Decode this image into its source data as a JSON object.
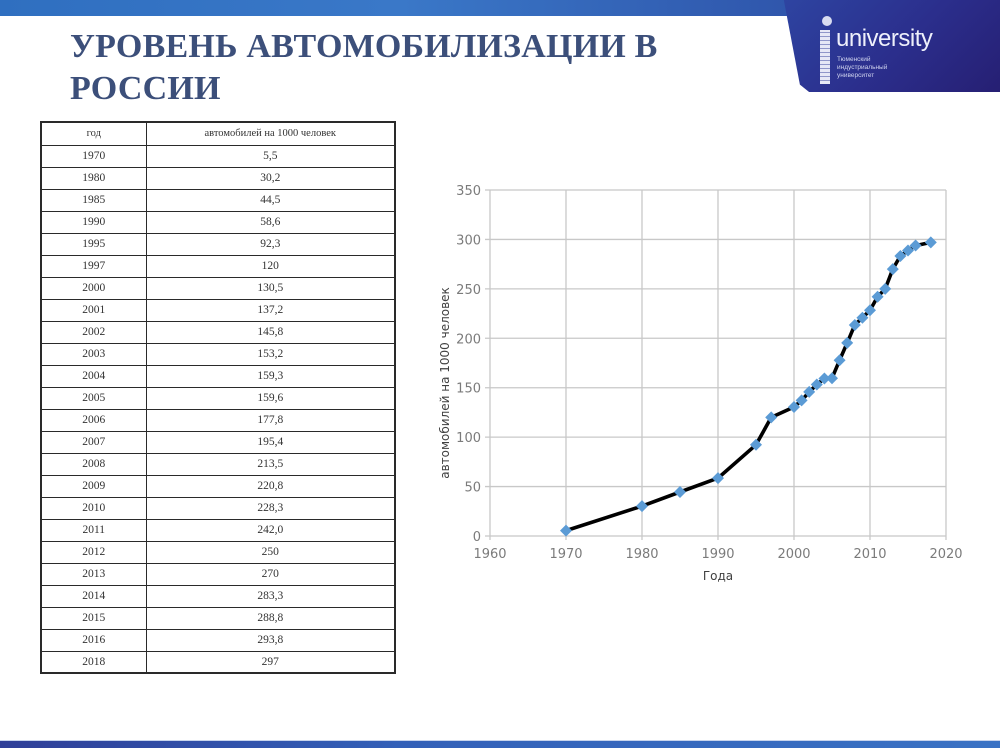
{
  "slide": {
    "title": "УРОВЕНЬ АВТОМОБИЛИЗАЦИИ В РОССИИ",
    "title_line1": "УРОВЕНЬ АВТОМОБИЛИЗАЦИИ В",
    "title_line2": "РОССИИ"
  },
  "logo": {
    "word": "university",
    "sub_line1": "Тюменский",
    "sub_line2": "индустриальный",
    "sub_line3": "университет"
  },
  "table": {
    "headers": [
      "год",
      "автомобилей на 1000 человек"
    ],
    "rows": [
      [
        "1970",
        "5,5"
      ],
      [
        "1980",
        "30,2"
      ],
      [
        "1985",
        "44,5"
      ],
      [
        "1990",
        "58,6"
      ],
      [
        "1995",
        "92,3"
      ],
      [
        "1997",
        "120"
      ],
      [
        "2000",
        "130,5"
      ],
      [
        "2001",
        "137,2"
      ],
      [
        "2002",
        "145,8"
      ],
      [
        "2003",
        "153,2"
      ],
      [
        "2004",
        "159,3"
      ],
      [
        "2005",
        "159,6"
      ],
      [
        "2006",
        "177,8"
      ],
      [
        "2007",
        "195,4"
      ],
      [
        "2008",
        "213,5"
      ],
      [
        "2009",
        "220,8"
      ],
      [
        "2010",
        "228,3"
      ],
      [
        "2011",
        "242,0"
      ],
      [
        "2012",
        "250"
      ],
      [
        "2013",
        "270"
      ],
      [
        "2014",
        "283,3"
      ],
      [
        "2015",
        "288,8"
      ],
      [
        "2016",
        "293,8"
      ],
      [
        "2018",
        "297"
      ]
    ]
  },
  "colors": {
    "title": "#3c4f7a",
    "line": "#000000",
    "marker": "#5b9bd5",
    "grid": "#c8c8c8",
    "band": "#2f55ab"
  },
  "chart_data": {
    "type": "scatter",
    "title": "",
    "xlabel": "Года",
    "ylabel": "автомобилей на 1000 человек",
    "xlim": [
      1960,
      2020
    ],
    "ylim": [
      0,
      350
    ],
    "xticks": [
      1960,
      1970,
      1980,
      1990,
      2000,
      2010,
      2020
    ],
    "yticks": [
      0,
      50,
      100,
      150,
      200,
      250,
      300,
      350
    ],
    "grid": true,
    "legend": null,
    "series": [
      {
        "name": "автомобилей на 1000 человек",
        "style": "line+diamond-markers",
        "x": [
          1970,
          1980,
          1985,
          1990,
          1995,
          1997,
          2000,
          2001,
          2002,
          2003,
          2004,
          2005,
          2006,
          2007,
          2008,
          2009,
          2010,
          2011,
          2012,
          2013,
          2014,
          2015,
          2016,
          2018
        ],
        "y": [
          5.5,
          30.2,
          44.5,
          58.6,
          92.3,
          120,
          130.5,
          137.2,
          145.8,
          153.2,
          159.3,
          159.6,
          177.8,
          195.4,
          213.5,
          220.8,
          228.3,
          242.0,
          250,
          270,
          283.3,
          288.8,
          293.8,
          297
        ]
      }
    ]
  }
}
